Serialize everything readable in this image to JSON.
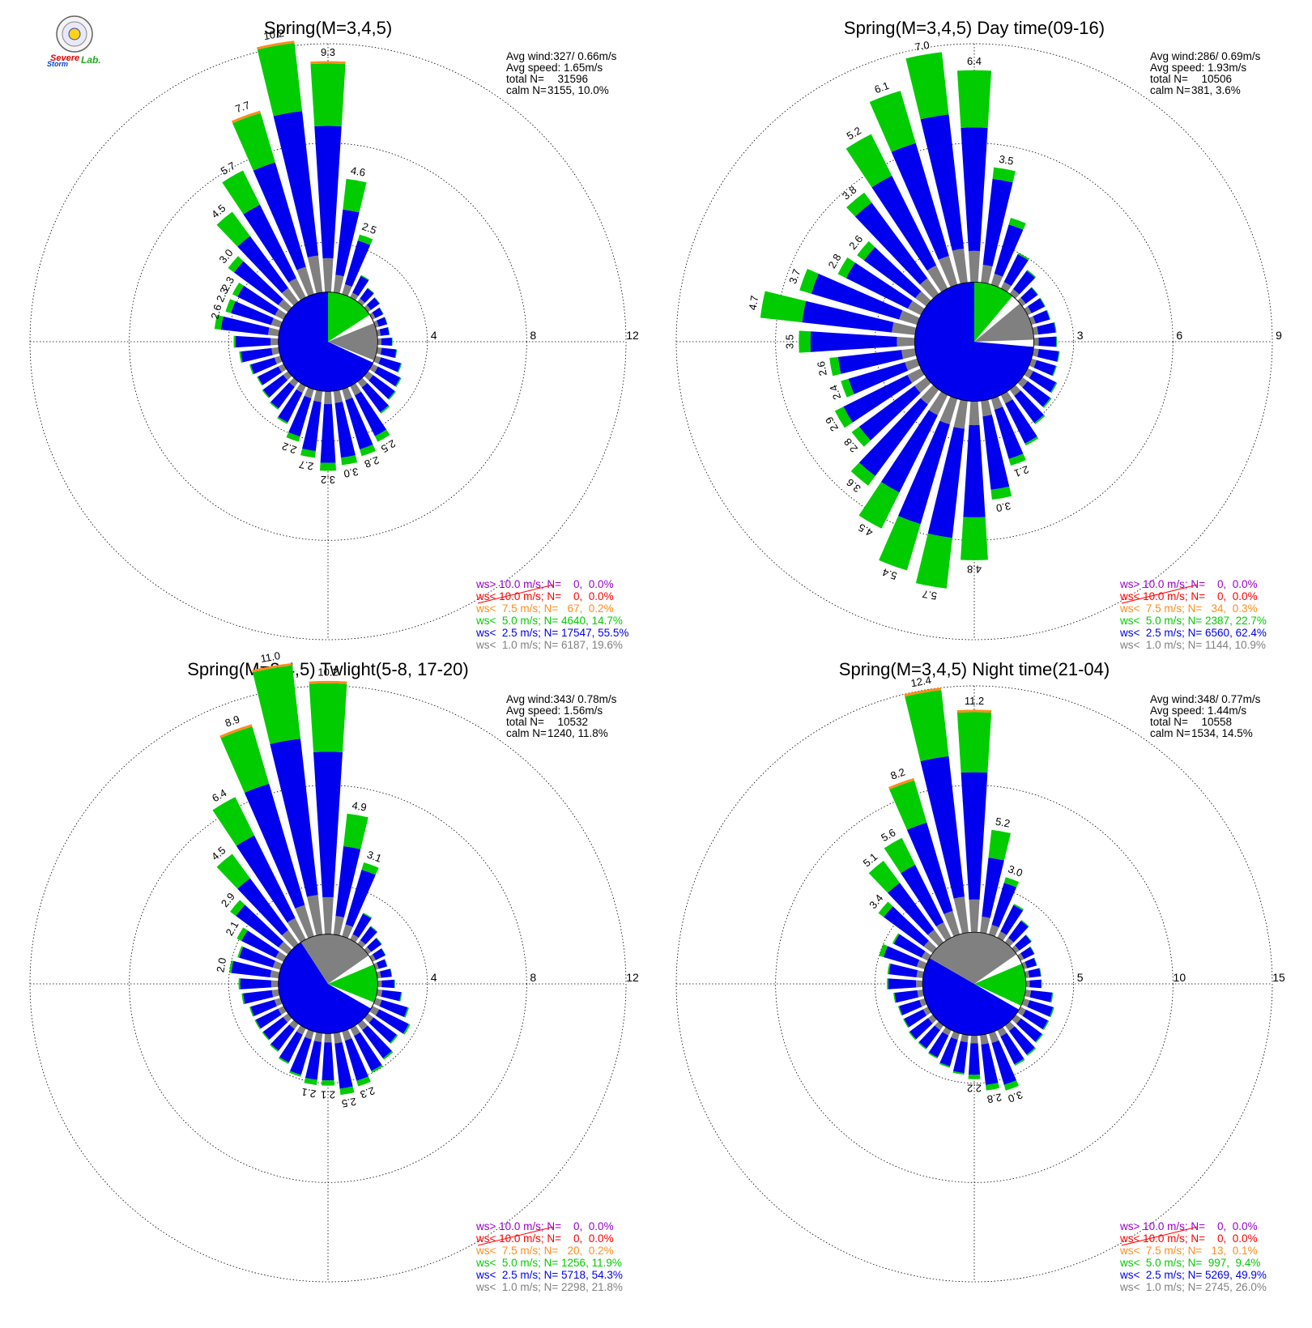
{
  "logo": {
    "line1": "Severe",
    "line2": "Storm",
    "line3": "Lab."
  },
  "colors": {
    "calm": "#808080",
    "lt1": "#808080",
    "lt25": "#0000ee",
    "lt5": "#00cc00",
    "lt75": "#ff8c1a",
    "lt10": "#ff0000",
    "gt10": "#9900cc"
  },
  "chart_data": [
    {
      "type": "wind-rose",
      "title": "Spring(M=3,4,5)",
      "stats": {
        "avg_wind": "Avg wind:327/ 0.66m/s",
        "avg_speed": "Avg speed: 1.65m/s",
        "total_label": "total N=",
        "total_value": "31596",
        "calm_label": "calm N=",
        "calm_value": "3155,  10.0%"
      },
      "rmax": 12,
      "ticks": [
        "4",
        "8",
        "12"
      ],
      "calm_pie": {
        "radius": 2.0,
        "slices": [
          {
            "class": "lt25",
            "from": 115,
            "to": 360
          },
          {
            "class": "lt5",
            "from": 0,
            "to": 57
          },
          {
            "class": "lt1",
            "from": 68,
            "to": 112
          }
        ]
      },
      "bar_labels": [
        {
          "dir": 0,
          "label": "9.3"
        },
        {
          "dir": -10,
          "label": "10.2"
        },
        {
          "dir": -20,
          "label": "7.7"
        },
        {
          "dir": -30,
          "label": "5.7"
        },
        {
          "dir": -40,
          "label": "4.5"
        },
        {
          "dir": -50,
          "label": "3.0"
        },
        {
          "dir": -60,
          "label": "2.3"
        },
        {
          "dir": -66,
          "label": "2.3"
        },
        {
          "dir": -75,
          "label": "2.6"
        },
        {
          "dir": 10,
          "label": "4.6"
        },
        {
          "dir": 20,
          "label": "2.5"
        },
        {
          "dir": 150,
          "label": "2.5"
        },
        {
          "dir": 160,
          "label": "2.8"
        },
        {
          "dir": 170,
          "label": "3.0"
        },
        {
          "dir": 180,
          "label": "3.2"
        },
        {
          "dir": 190,
          "label": "2.7"
        },
        {
          "dir": 200,
          "label": "2.2"
        }
      ],
      "values": [
        9.3,
        4.6,
        2.5,
        1.0,
        0.7,
        0.6,
        0.5,
        0.5,
        0.5,
        0.6,
        0.8,
        1.1,
        1.3,
        1.4,
        1.6,
        2.5,
        2.8,
        3.0,
        3.2,
        2.7,
        2.2,
        1.7,
        1.4,
        1.3,
        1.2,
        1.3,
        1.6,
        1.8,
        2.6,
        2.3,
        2.3,
        3.0,
        4.5,
        5.7,
        7.7,
        10.2
      ],
      "legend": [
        {
          "class": "gt10",
          "text": "ws> 10.0 m/s; N=    0,  0.0%"
        },
        {
          "class": "lt10",
          "text": "ws< 10.0 m/s; N=    0,  0.0%"
        },
        {
          "class": "lt75",
          "text": "ws<  7.5 m/s; N=   67,  0.2%"
        },
        {
          "class": "lt5",
          "text": "ws<  5.0 m/s; N= 4640, 14.7%"
        },
        {
          "class": "lt25",
          "text": "ws<  2.5 m/s; N= 17547, 55.5%"
        },
        {
          "class": "lt1",
          "text": "ws<  1.0 m/s; N= 6187, 19.6%"
        }
      ]
    },
    {
      "type": "wind-rose",
      "title": "Spring(M=3,4,5) Day time(09-16)",
      "stats": {
        "avg_wind": "Avg wind:286/ 0.69m/s",
        "avg_speed": "Avg speed: 1.93m/s",
        "total_label": "total N=",
        "total_value": "10506",
        "calm_label": "calm N=",
        "calm_value": "381,   3.6%"
      },
      "rmax": 9,
      "ticks": [
        "3",
        "6",
        "9"
      ],
      "calm_pie": {
        "radius": 1.8,
        "slices": [
          {
            "class": "lt25",
            "from": 95,
            "to": 360
          },
          {
            "class": "lt5",
            "from": 0,
            "to": 40
          },
          {
            "class": "lt1",
            "from": 50,
            "to": 88
          }
        ]
      },
      "bar_labels": [
        {
          "dir": 0,
          "label": "6.4"
        },
        {
          "dir": -10,
          "label": "7.0"
        },
        {
          "dir": -20,
          "label": "6.1"
        },
        {
          "dir": -30,
          "label": "5.2"
        },
        {
          "dir": -40,
          "label": "3.8"
        },
        {
          "dir": -50,
          "label": "2.6"
        },
        {
          "dir": -60,
          "label": "2.8"
        },
        {
          "dir": -70,
          "label": "3.7"
        },
        {
          "dir": -80,
          "label": "4.7"
        },
        {
          "dir": -90,
          "label": "3.5"
        },
        {
          "dir": 10,
          "label": "3.5"
        },
        {
          "dir": 160,
          "label": "2.1"
        },
        {
          "dir": 170,
          "label": "3.0"
        },
        {
          "dir": 180,
          "label": "4.8"
        },
        {
          "dir": 190,
          "label": "5.7"
        },
        {
          "dir": 200,
          "label": "5.4"
        },
        {
          "dir": 210,
          "label": "4.5"
        },
        {
          "dir": 220,
          "label": "3.6"
        },
        {
          "dir": 230,
          "label": "2.8"
        },
        {
          "dir": 240,
          "label": "2.9"
        },
        {
          "dir": 250,
          "label": "2.4"
        },
        {
          "dir": 260,
          "label": "2.6"
        }
      ],
      "values": [
        6.4,
        3.5,
        2.1,
        1.2,
        0.9,
        0.6,
        0.6,
        0.6,
        0.7,
        0.7,
        0.8,
        0.8,
        1.0,
        1.1,
        1.3,
        1.7,
        2.1,
        3.0,
        4.8,
        5.7,
        5.4,
        4.5,
        3.6,
        2.8,
        2.9,
        2.4,
        2.6,
        3.5,
        4.7,
        3.7,
        2.8,
        2.6,
        3.8,
        5.2,
        6.1,
        7.0
      ],
      "legend": [
        {
          "class": "gt10",
          "text": "ws> 10.0 m/s; N=    0,  0.0%"
        },
        {
          "class": "lt10",
          "text": "ws< 10.0 m/s; N=    0,  0.0%"
        },
        {
          "class": "lt75",
          "text": "ws<  7.5 m/s; N=   34,  0.3%"
        },
        {
          "class": "lt5",
          "text": "ws<  5.0 m/s; N= 2387, 22.7%"
        },
        {
          "class": "lt25",
          "text": "ws<  2.5 m/s; N= 6560, 62.4%"
        },
        {
          "class": "lt1",
          "text": "ws<  1.0 m/s; N= 1144, 10.9%"
        }
      ]
    },
    {
      "type": "wind-rose",
      "title": "Spring(M=3,4,5) Twlight(5-8, 17-20)",
      "stats": {
        "avg_wind": "Avg wind:343/ 0.78m/s",
        "avg_speed": "Avg speed: 1.56m/s",
        "total_label": "total N=",
        "total_value": "10532",
        "calm_label": "calm N=",
        "calm_value": "1240,  11.8%"
      },
      "rmax": 12,
      "ticks": [
        "4",
        "8",
        "12"
      ],
      "calm_pie": {
        "radius": 2.0,
        "slices": [
          {
            "class": "lt25",
            "from": 120,
            "to": 327
          },
          {
            "class": "lt1",
            "from": 327,
            "to": 360
          },
          {
            "class": "lt1",
            "from": 0,
            "to": 55
          },
          {
            "class": "lt5",
            "from": 67,
            "to": 112
          }
        ]
      },
      "bar_labels": [
        {
          "dir": 0,
          "label": "10.2"
        },
        {
          "dir": -10,
          "label": "11.0"
        },
        {
          "dir": -20,
          "label": "8.9"
        },
        {
          "dir": -30,
          "label": "6.4"
        },
        {
          "dir": -40,
          "label": "4.5"
        },
        {
          "dir": -50,
          "label": "2.9"
        },
        {
          "dir": -60,
          "label": "2.1"
        },
        {
          "dir": -80,
          "label": "2.0"
        },
        {
          "dir": 10,
          "label": "4.9"
        },
        {
          "dir": 20,
          "label": "3.1"
        },
        {
          "dir": 160,
          "label": "2.3"
        },
        {
          "dir": 170,
          "label": "2.5"
        },
        {
          "dir": 180,
          "label": "2.1"
        },
        {
          "dir": 190,
          "label": "2.1"
        }
      ],
      "values": [
        10.2,
        4.9,
        3.1,
        1.2,
        0.9,
        0.7,
        0.6,
        0.5,
        0.6,
        0.7,
        1.0,
        1.4,
        1.7,
        1.5,
        1.8,
        2.0,
        2.3,
        2.5,
        2.1,
        2.1,
        1.9,
        1.6,
        1.4,
        1.3,
        1.3,
        1.3,
        1.5,
        1.6,
        2.0,
        1.8,
        2.1,
        2.9,
        4.5,
        6.4,
        8.9,
        11.0
      ],
      "legend": [
        {
          "class": "gt10",
          "text": "ws> 10.0 m/s; N=    0,  0.0%"
        },
        {
          "class": "lt10",
          "text": "ws< 10.0 m/s; N=    0,  0.0%"
        },
        {
          "class": "lt75",
          "text": "ws<  7.5 m/s; N=   20,  0.2%"
        },
        {
          "class": "lt5",
          "text": "ws<  5.0 m/s; N= 1256, 11.9%"
        },
        {
          "class": "lt25",
          "text": "ws<  2.5 m/s; N= 5718, 54.3%"
        },
        {
          "class": "lt1",
          "text": "ws<  1.0 m/s; N= 2298, 21.8%"
        }
      ]
    },
    {
      "type": "wind-rose",
      "title": "Spring(M=3,4,5) Night time(21-04)",
      "stats": {
        "avg_wind": "Avg wind:348/ 0.77m/s",
        "avg_speed": "Avg speed: 1.44m/s",
        "total_label": "total N=",
        "total_value": "10558",
        "calm_label": "calm N=",
        "calm_value": "1534,  14.5%"
      },
      "rmax": 15,
      "ticks": [
        "5",
        "10",
        "15"
      ],
      "calm_pie": {
        "radius": 2.6,
        "slices": [
          {
            "class": "lt25",
            "from": 120,
            "to": 300
          },
          {
            "class": "lt1",
            "from": 300,
            "to": 360
          },
          {
            "class": "lt1",
            "from": 0,
            "to": 55
          },
          {
            "class": "lt5",
            "from": 67,
            "to": 115
          }
        ]
      },
      "bar_labels": [
        {
          "dir": 0,
          "label": "11.2"
        },
        {
          "dir": -10,
          "label": "12.4"
        },
        {
          "dir": -20,
          "label": "8.2"
        },
        {
          "dir": -30,
          "label": "5.6"
        },
        {
          "dir": -40,
          "label": "5.1"
        },
        {
          "dir": -50,
          "label": "3.4"
        },
        {
          "dir": 10,
          "label": "5.2"
        },
        {
          "dir": 20,
          "label": "3.0"
        },
        {
          "dir": 160,
          "label": "3.0"
        },
        {
          "dir": 170,
          "label": "2.8"
        },
        {
          "dir": 180,
          "label": "2.2"
        }
      ],
      "values": [
        11.2,
        5.2,
        3.0,
        1.9,
        1.4,
        1.0,
        0.8,
        0.7,
        0.8,
        0.8,
        1.4,
        1.6,
        1.6,
        1.7,
        1.9,
        2.0,
        3.0,
        2.8,
        2.2,
        2.0,
        1.8,
        1.6,
        1.5,
        1.5,
        1.4,
        1.4,
        1.5,
        1.8,
        1.8,
        2.4,
        2.0,
        3.4,
        5.1,
        5.6,
        8.2,
        12.4
      ],
      "legend": [
        {
          "class": "gt10",
          "text": "ws> 10.0 m/s; N=    0,  0.0%"
        },
        {
          "class": "lt10",
          "text": "ws< 10.0 m/s; N=    0,  0.0%"
        },
        {
          "class": "lt75",
          "text": "ws<  7.5 m/s; N=   13,  0.1%"
        },
        {
          "class": "lt5",
          "text": "ws<  5.0 m/s; N=  997,  9.4%"
        },
        {
          "class": "lt25",
          "text": "ws<  2.5 m/s; N= 5269, 49.9%"
        },
        {
          "class": "lt1",
          "text": "ws<  1.0 m/s; N= 2745, 26.0%"
        }
      ]
    }
  ]
}
